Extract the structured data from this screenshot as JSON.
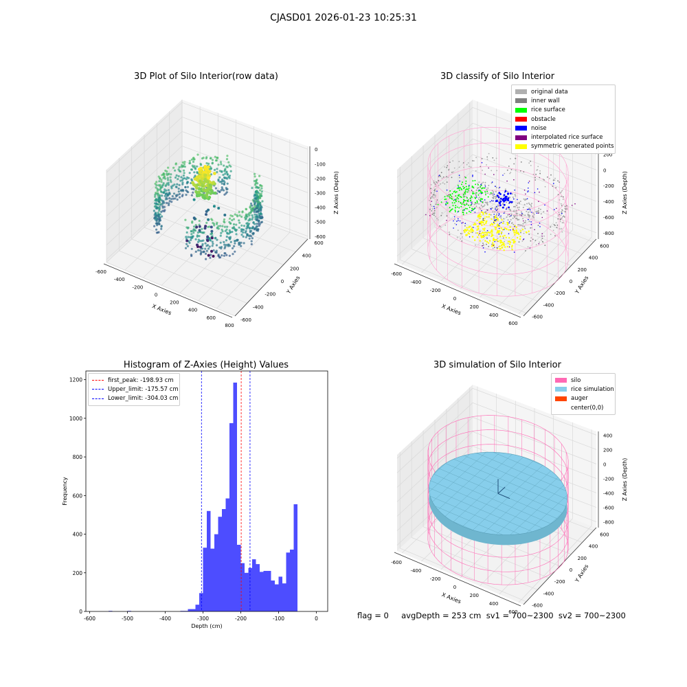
{
  "suptitle": "CJASD01 2026-01-23 10:25:31",
  "footer": "flag = 0     avgDepth = 253 cm  sv1 = 700~2300  sv2 = 700~2300",
  "chart_data": [
    {
      "type": "scatter3d",
      "title": "3D Plot of Silo Interior(row data)",
      "xlabel": "X Axies",
      "ylabel": "Y Axies",
      "zlabel": "Z Axies (Depth)",
      "xticks": [
        "-600",
        "-400",
        "-200",
        "0",
        "200",
        "400",
        "600",
        "800"
      ],
      "yticks": [
        "-600",
        "-400",
        "-200",
        "0",
        "200",
        "400",
        "600"
      ],
      "zticks": [
        "0",
        "-100",
        "-200",
        "-300",
        "-400",
        "-500",
        "-600"
      ],
      "xlim": [
        -600,
        800
      ],
      "ylim": [
        -600,
        600
      ],
      "zlim": [
        -620,
        20
      ],
      "colormap": "viridis"
    },
    {
      "type": "scatter3d",
      "title": "3D classify of Silo Interior",
      "xlabel": "X Axies",
      "ylabel": "Y Axies",
      "zlabel": "Z Axies (Depth)",
      "xticks": [
        "-600",
        "-400",
        "-200",
        "0",
        "200",
        "400",
        "600"
      ],
      "yticks": [
        "-600",
        "-400",
        "-200",
        "0",
        "200",
        "400",
        "600"
      ],
      "zticks": [
        "200",
        "0",
        "-200",
        "-400",
        "-600",
        "-800"
      ],
      "xlim": [
        -650,
        650
      ],
      "ylim": [
        -650,
        650
      ],
      "zlim": [
        -880,
        300
      ],
      "legend": [
        {
          "label": "original data",
          "color": "#b0b0b0"
        },
        {
          "label": "inner wall",
          "color": "#808080"
        },
        {
          "label": "rice surface",
          "color": "#00ff00"
        },
        {
          "label": "obstacle",
          "color": "#ff0000"
        },
        {
          "label": "noise",
          "color": "#0000ff"
        },
        {
          "label": "interpolated rice surface",
          "color": "#800080"
        },
        {
          "label": "symmetric generated points",
          "color": "#ffff00"
        }
      ],
      "legend_position": "top-right"
    },
    {
      "type": "histogram",
      "title": "Histogram of Z-Axies (Height) Values",
      "xlabel": "Depth (cm)",
      "ylabel": "Frequency",
      "xlim": [
        -610,
        30
      ],
      "ylim": [
        0,
        1245
      ],
      "xticks": [
        -600,
        -500,
        -400,
        -300,
        -200,
        -100,
        0
      ],
      "yticks": [
        0,
        200,
        400,
        600,
        800,
        1000,
        1200
      ],
      "bin_width": 10,
      "bins": [
        {
          "x0": -550,
          "count": 3
        },
        {
          "x0": -500,
          "count": 3
        },
        {
          "x0": -360,
          "count": 3
        },
        {
          "x0": -350,
          "count": 3
        },
        {
          "x0": -340,
          "count": 12
        },
        {
          "x0": -330,
          "count": 12
        },
        {
          "x0": -320,
          "count": 35
        },
        {
          "x0": -310,
          "count": 95
        },
        {
          "x0": -300,
          "count": 330
        },
        {
          "x0": -290,
          "count": 520
        },
        {
          "x0": -280,
          "count": 325
        },
        {
          "x0": -270,
          "count": 400
        },
        {
          "x0": -260,
          "count": 490
        },
        {
          "x0": -250,
          "count": 530
        },
        {
          "x0": -240,
          "count": 585
        },
        {
          "x0": -230,
          "count": 975
        },
        {
          "x0": -220,
          "count": 1185
        },
        {
          "x0": -210,
          "count": 345
        },
        {
          "x0": -200,
          "count": 250
        },
        {
          "x0": -190,
          "count": 200
        },
        {
          "x0": -180,
          "count": 225
        },
        {
          "x0": -170,
          "count": 270
        },
        {
          "x0": -160,
          "count": 245
        },
        {
          "x0": -150,
          "count": 205
        },
        {
          "x0": -140,
          "count": 210
        },
        {
          "x0": -130,
          "count": 210
        },
        {
          "x0": -120,
          "count": 160
        },
        {
          "x0": -110,
          "count": 140
        },
        {
          "x0": -100,
          "count": 180
        },
        {
          "x0": -90,
          "count": 145
        },
        {
          "x0": -80,
          "count": 305
        },
        {
          "x0": -70,
          "count": 320
        },
        {
          "x0": -60,
          "count": 555
        }
      ],
      "vlines": [
        {
          "x": -198.93,
          "label": "first_peak: -198.93 cm",
          "color": "#ff0000"
        },
        {
          "x": -175.57,
          "label": "Upper_limit: -175.57 cm",
          "color": "#0000ff"
        },
        {
          "x": -304.03,
          "label": "Lower_limit: -304.03 cm",
          "color": "#0000ff"
        }
      ],
      "bar_color": "#4d4dff",
      "legend_position": "top-left"
    },
    {
      "type": "surface3d",
      "title": "3D simulation of Silo Interior",
      "xlabel": "X Axies",
      "ylabel": "Y Axies",
      "zlabel": "Z Axies (Depth)",
      "xticks": [
        "-600",
        "-400",
        "-200",
        "0",
        "200",
        "400",
        "600"
      ],
      "yticks": [
        "-600",
        "-400",
        "-200",
        "0",
        "200",
        "400",
        "600"
      ],
      "zticks": [
        "400",
        "200",
        "0",
        "-200",
        "-400",
        "-600",
        "-800"
      ],
      "xlim": [
        -650,
        650
      ],
      "ylim": [
        -650,
        650
      ],
      "zlim": [
        -880,
        450
      ],
      "legend": [
        {
          "label": "silo",
          "color": "#ff69b4"
        },
        {
          "label": "rice simulation",
          "color": "#87ceeb"
        },
        {
          "label": "auger",
          "color": "#ff4500"
        },
        {
          "label": "center(0,0)",
          "color": "none"
        }
      ],
      "legend_position": "top-right"
    }
  ]
}
